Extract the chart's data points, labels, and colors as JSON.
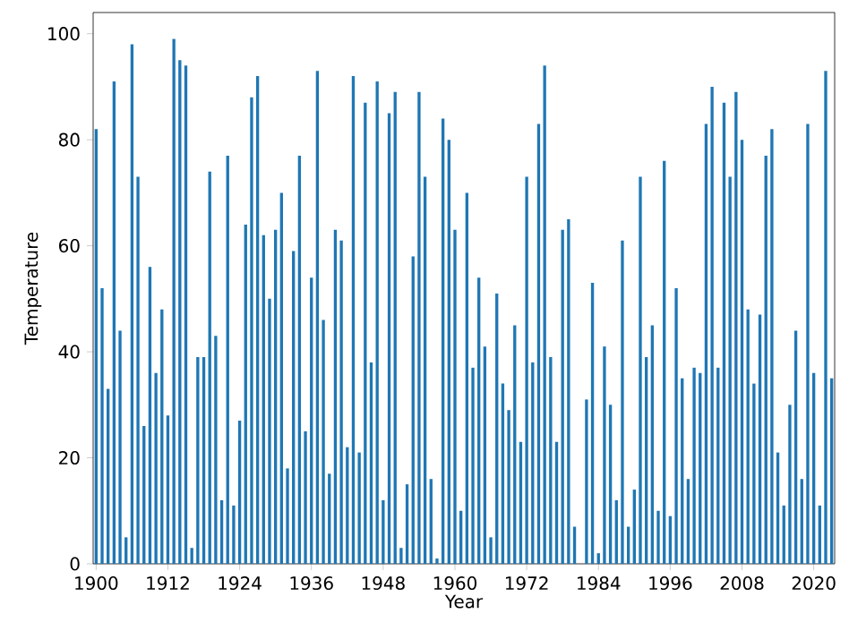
{
  "chart_data": {
    "type": "bar",
    "xlabel": "Year",
    "ylabel": "Temperature",
    "color": "#1f77b4",
    "categories": [
      "1900",
      null,
      null,
      null,
      null,
      null,
      null,
      null,
      null,
      null,
      null,
      null,
      "1912",
      null,
      null,
      null,
      null,
      null,
      null,
      null,
      null,
      null,
      null,
      null,
      "1924",
      null,
      null,
      null,
      null,
      null,
      null,
      null,
      null,
      null,
      null,
      null,
      "1936",
      null,
      null,
      null,
      null,
      null,
      null,
      null,
      null,
      null,
      null,
      null,
      "1948",
      null,
      null,
      null,
      null,
      null,
      null,
      null,
      null,
      null,
      null,
      null,
      "1960",
      null,
      null,
      null,
      null,
      null,
      null,
      null,
      null,
      null,
      null,
      null,
      "1972",
      null,
      null,
      null,
      null,
      null,
      null,
      null,
      null,
      null,
      null,
      null,
      "1984",
      null,
      null,
      null,
      null,
      null,
      null,
      null,
      null,
      null,
      null,
      null,
      "1996",
      null,
      null,
      null,
      null,
      null,
      null,
      null,
      null,
      null,
      null,
      null,
      "2008",
      null,
      null,
      null,
      null,
      null,
      null,
      null,
      null,
      null,
      null,
      null,
      "2020",
      null,
      null,
      null
    ],
    "values": [
      82,
      52,
      33,
      91,
      44,
      5,
      98,
      73,
      26,
      56,
      36,
      48,
      28,
      99,
      95,
      94,
      3,
      39,
      39,
      74,
      43,
      12,
      77,
      11,
      27,
      64,
      88,
      92,
      62,
      50,
      63,
      70,
      18,
      59,
      77,
      25,
      54,
      93,
      46,
      17,
      63,
      61,
      22,
      92,
      21,
      87,
      38,
      91,
      12,
      85,
      89,
      3,
      15,
      58,
      89,
      73,
      16,
      1,
      84,
      80,
      63,
      10,
      70,
      37,
      54,
      41,
      5,
      51,
      34,
      29,
      45,
      23,
      73,
      38,
      83,
      94,
      39,
      23,
      63,
      65,
      7,
      0,
      31,
      53,
      2,
      41,
      30,
      12,
      61,
      7,
      14,
      73,
      39,
      45,
      10,
      76,
      9,
      52,
      35,
      16,
      37,
      36,
      83,
      90,
      37,
      87,
      73,
      89,
      80,
      48,
      34,
      47,
      77,
      82,
      21,
      11,
      30,
      44,
      16,
      83,
      36,
      11,
      93,
      35
    ],
    "ylim": [
      0,
      104
    ],
    "yticks": [
      0,
      20,
      40,
      60,
      80,
      100
    ]
  }
}
